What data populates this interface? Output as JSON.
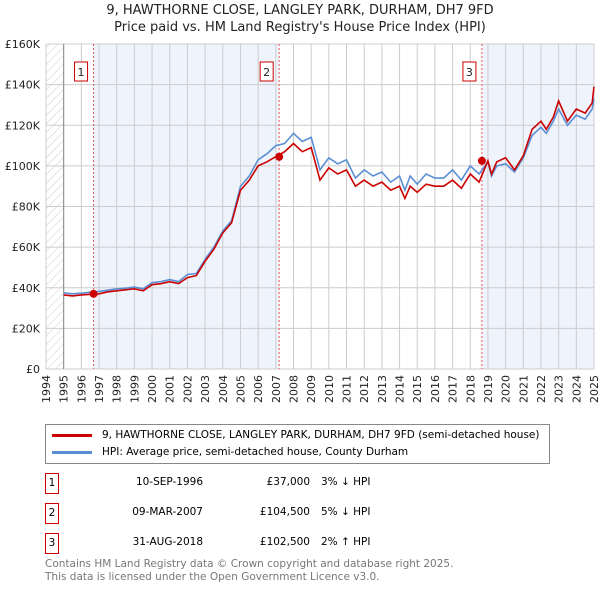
{
  "title": "9, HAWTHORNE CLOSE, LANGLEY PARK, DURHAM, DH7 9FD",
  "subtitle": "Price paid vs. HM Land Registry's House Price Index (HPI)",
  "chart_data": {
    "type": "line",
    "xlim": [
      1994,
      2025
    ],
    "ylim": [
      0,
      160000
    ],
    "x_ticks": [
      "1994",
      "1995",
      "1996",
      "1997",
      "1998",
      "1999",
      "2000",
      "2001",
      "2002",
      "2003",
      "2004",
      "2005",
      "2006",
      "2007",
      "2008",
      "2009",
      "2010",
      "2011",
      "2012",
      "2013",
      "2014",
      "2015",
      "2016",
      "2017",
      "2018",
      "2019",
      "2020",
      "2021",
      "2022",
      "2023",
      "2024",
      "2025"
    ],
    "y_ticks": [
      {
        "v": 0,
        "label": "£0"
      },
      {
        "v": 20000,
        "label": "£20K"
      },
      {
        "v": 40000,
        "label": "£40K"
      },
      {
        "v": 60000,
        "label": "£60K"
      },
      {
        "v": 80000,
        "label": "£80K"
      },
      {
        "v": 100000,
        "label": "£100K"
      },
      {
        "v": 120000,
        "label": "£120K"
      },
      {
        "v": 140000,
        "label": "£140K"
      },
      {
        "v": 160000,
        "label": "£160K"
      }
    ],
    "x": [
      1995,
      1995.5,
      1996,
      1996.5,
      1997,
      1997.5,
      1998,
      1998.5,
      1999,
      1999.5,
      2000,
      2000.5,
      2001,
      2001.5,
      2002,
      2002.5,
      2003,
      2003.5,
      2004,
      2004.5,
      2005,
      2005.5,
      2006,
      2006.5,
      2007,
      2007.5,
      2008,
      2008.5,
      2009,
      2009.5,
      2010,
      2010.5,
      2011,
      2011.5,
      2012,
      2012.5,
      2013,
      2013.5,
      2014,
      2014.3,
      2014.6,
      2015,
      2015.5,
      2016,
      2016.5,
      2017,
      2017.5,
      2018,
      2018.5,
      2019,
      2019.2,
      2019.5,
      2020,
      2020.5,
      2021,
      2021.5,
      2022,
      2022.3,
      2022.7,
      2023,
      2023.5,
      2024,
      2024.5,
      2024.9,
      2025
    ],
    "series": [
      {
        "name": "9, HAWTHORNE CLOSE, LANGLEY PARK, DURHAM, DH7 9FD (semi-detached house)",
        "color": "#cc0000",
        "values": [
          36500,
          36000,
          36500,
          36800,
          37000,
          38000,
          38500,
          39000,
          39500,
          38500,
          41500,
          42000,
          43000,
          42000,
          45000,
          46000,
          53000,
          59000,
          67000,
          72000,
          88000,
          93000,
          100000,
          102000,
          104500,
          107000,
          111000,
          107000,
          109000,
          93000,
          99000,
          96000,
          98000,
          90000,
          93000,
          90000,
          92000,
          88000,
          90000,
          84000,
          90000,
          87000,
          91000,
          90000,
          90000,
          93000,
          89000,
          96000,
          92000,
          102500,
          96000,
          102000,
          104000,
          98000,
          105000,
          118000,
          122000,
          118000,
          124000,
          132000,
          122000,
          128000,
          126000,
          131000,
          139000
        ]
      },
      {
        "name": "HPI: Average price, semi-detached house, County Durham",
        "color": "#5b8fd4",
        "values": [
          37500,
          37000,
          37300,
          37800,
          38200,
          38800,
          39500,
          39800,
          40300,
          39500,
          42500,
          43000,
          44000,
          43000,
          46500,
          47000,
          54000,
          60000,
          68000,
          73000,
          90000,
          95000,
          103000,
          106000,
          110000,
          111000,
          116000,
          112000,
          114000,
          98000,
          104000,
          101000,
          103000,
          94000,
          98000,
          95000,
          97000,
          92000,
          95000,
          88000,
          95000,
          91000,
          96000,
          94000,
          94000,
          98000,
          93000,
          100000,
          96000,
          102000,
          95000,
          100000,
          101000,
          97000,
          104000,
          115000,
          119000,
          116000,
          122000,
          128000,
          120000,
          125000,
          123000,
          128000,
          133000
        ]
      }
    ],
    "sales": [
      {
        "id": "1",
        "x": 1996.69,
        "value": 37000,
        "date": "10-SEP-1996",
        "price": "£37,000",
        "hpi": "3% ↓ HPI"
      },
      {
        "id": "2",
        "x": 2007.19,
        "value": 104500,
        "date": "09-MAR-2007",
        "price": "£104,500",
        "hpi": "5% ↓ HPI"
      },
      {
        "id": "3",
        "x": 2018.66,
        "value": 102500,
        "date": "31-AUG-2018",
        "price": "£102,500",
        "hpi": "2% ↑ HPI"
      }
    ],
    "grid": true
  },
  "legend": {
    "red": "9, HAWTHORNE CLOSE, LANGLEY PARK, DURHAM, DH7 9FD (semi-detached house)",
    "blue": "HPI: Average price, semi-detached house, County Durham"
  },
  "footer": {
    "line1": "Contains HM Land Registry data © Crown copyright and database right 2025.",
    "line2": "This data is licensed under the Open Government Licence v3.0."
  }
}
